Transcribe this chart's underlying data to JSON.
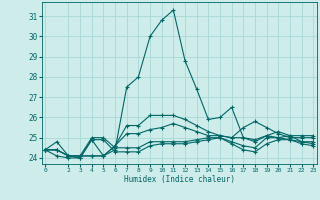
{
  "xlabel": "Humidex (Indice chaleur)",
  "background_color": "#ceecea",
  "grid_color": "#a8d8d8",
  "line_color": "#006666",
  "xlim": [
    -0.3,
    23.3
  ],
  "ylim": [
    23.7,
    31.7
  ],
  "yticks": [
    24,
    25,
    26,
    27,
    28,
    29,
    30,
    31
  ],
  "xticks": [
    0,
    2,
    3,
    4,
    5,
    6,
    7,
    8,
    9,
    10,
    11,
    12,
    13,
    14,
    15,
    16,
    17,
    18,
    19,
    20,
    21,
    22,
    23
  ],
  "series": [
    [
      24.4,
      24.8,
      24.1,
      24.0,
      24.9,
      24.1,
      24.4,
      27.5,
      28.0,
      30.0,
      30.8,
      31.3,
      28.8,
      27.4,
      25.9,
      26.0,
      26.5,
      25.0,
      24.8,
      25.1,
      25.0,
      24.9,
      24.8,
      24.8
    ],
    [
      24.4,
      24.1,
      24.0,
      24.0,
      24.9,
      24.9,
      24.3,
      24.3,
      24.3,
      24.6,
      24.7,
      24.7,
      24.7,
      24.8,
      24.9,
      25.0,
      24.7,
      24.4,
      24.3,
      24.7,
      24.9,
      24.9,
      24.7,
      24.6
    ],
    [
      24.4,
      24.4,
      24.1,
      24.1,
      24.1,
      24.1,
      24.6,
      25.2,
      25.2,
      25.4,
      25.5,
      25.7,
      25.5,
      25.3,
      25.1,
      25.1,
      25.0,
      25.0,
      24.9,
      25.1,
      25.3,
      25.1,
      25.1,
      25.1
    ],
    [
      24.4,
      24.4,
      24.1,
      24.1,
      25.0,
      25.0,
      24.5,
      24.5,
      24.5,
      24.8,
      24.8,
      24.8,
      24.8,
      24.9,
      25.0,
      25.0,
      24.8,
      24.6,
      24.5,
      25.0,
      25.0,
      25.1,
      24.8,
      24.7
    ],
    [
      24.4,
      24.4,
      24.1,
      24.1,
      24.1,
      24.1,
      24.6,
      25.6,
      25.6,
      26.1,
      26.1,
      26.1,
      25.9,
      25.6,
      25.3,
      25.1,
      25.0,
      25.5,
      25.8,
      25.5,
      25.2,
      25.0,
      25.0,
      25.0
    ]
  ],
  "marker": "+",
  "markersize": 3,
  "linewidth": 0.8
}
